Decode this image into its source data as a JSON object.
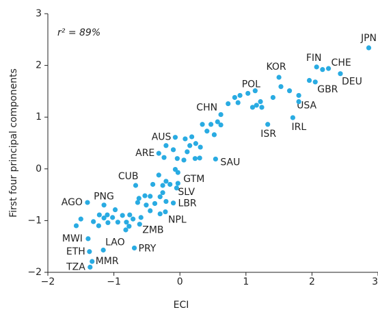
{
  "chart_data": {
    "type": "scatter",
    "xlabel": "ECI",
    "ylabel": "First four principal components",
    "annotation": "r² = 89%",
    "color": "#29abe2",
    "xlim": [
      -2,
      3
    ],
    "xticks": [
      {
        "value": -2,
        "label": "−2"
      },
      {
        "value": -1,
        "label": "−1"
      },
      0,
      1,
      2,
      3
    ],
    "ylim": [
      -2,
      3
    ],
    "yticks": [
      {
        "value": -2,
        "label": "−2"
      },
      {
        "value": -1,
        "label": "−1"
      },
      0,
      1,
      2,
      3
    ],
    "labels": [
      "JPN",
      "FIN",
      "CHE",
      "DEU",
      "GBR",
      "KOR",
      "POL",
      "USA",
      "ISR",
      "IRL",
      "CHN",
      "AUS",
      "ARE",
      "SAU",
      "CUB",
      "GTM",
      "SLV",
      "LBR",
      "NPL",
      "ZMB",
      "AGO",
      "PNG",
      "MWI",
      "ETH",
      "LAO",
      "PRY",
      "MMR",
      "TZA",
      null,
      null,
      null,
      null,
      null,
      null,
      null,
      null,
      null,
      null,
      null,
      null,
      null,
      null,
      null,
      null,
      null,
      null,
      null,
      null,
      null,
      null,
      null,
      null,
      null,
      null,
      null,
      null,
      null,
      null,
      null,
      null,
      null,
      null,
      null,
      null,
      null,
      null,
      null,
      null,
      null,
      null,
      null,
      null,
      null,
      null,
      null,
      null,
      null,
      null,
      null,
      null,
      null,
      null,
      null,
      null,
      null,
      null,
      null,
      null,
      null,
      null,
      null,
      null,
      null,
      null,
      null,
      null,
      null,
      null
    ],
    "x": [
      2.86,
      2.07,
      2.25,
      2.43,
      2.05,
      1.5,
      1.03,
      1.8,
      1.33,
      1.71,
      0.62,
      -0.07,
      -0.32,
      0.54,
      -0.67,
      -0.03,
      -0.05,
      -0.1,
      -0.22,
      -0.61,
      -1.4,
      -1.15,
      -1.39,
      -1.37,
      -1.16,
      -0.69,
      -1.33,
      -1.36,
      2.16,
      1.96,
      1.66,
      1.53,
      1.41,
      1.22,
      1.16,
      1.1,
      1.24,
      0.91,
      0.83,
      0.88,
      0.73,
      1.14,
      1.8,
      0.62,
      0.47,
      0.34,
      0.57,
      0.41,
      0.52,
      0.18,
      0.08,
      0.24,
      0.15,
      0.31,
      0.11,
      0.23,
      0.3,
      0.06,
      -0.1,
      -0.21,
      -0.04,
      -0.24,
      -0.07,
      -0.03,
      -0.32,
      -0.21,
      -0.26,
      -0.41,
      -0.15,
      -0.53,
      -0.62,
      -0.45,
      -0.3,
      -0.26,
      -0.38,
      -0.51,
      -0.21,
      -0.64,
      -0.45,
      -0.3,
      -0.71,
      -0.59,
      -0.76,
      -0.81,
      -0.94,
      -0.87,
      -1.02,
      -1.15,
      -1.22,
      -1.31,
      -0.98,
      -1.09,
      -1.1,
      -1.23,
      -1.5,
      -1.57,
      -0.82,
      -0.77
    ],
    "values": [
      2.34,
      1.97,
      1.94,
      1.84,
      1.68,
      1.77,
      1.46,
      1.42,
      0.86,
      0.99,
      1.05,
      0.61,
      0.3,
      0.19,
      -0.32,
      -0.28,
      -0.37,
      -0.66,
      -0.83,
      -1.07,
      -0.65,
      -0.7,
      -1.35,
      -1.6,
      -1.57,
      -1.53,
      -1.79,
      -1.9,
      1.92,
      1.71,
      1.51,
      1.59,
      1.38,
      1.3,
      1.23,
      1.19,
      1.19,
      1.42,
      1.38,
      1.28,
      1.26,
      1.51,
      1.3,
      0.85,
      0.86,
      0.86,
      0.91,
      0.73,
      0.66,
      0.62,
      0.58,
      0.49,
      0.45,
      0.42,
      0.33,
      0.2,
      0.21,
      0.17,
      0.37,
      0.45,
      0.2,
      0.22,
      -0.01,
      -0.07,
      -0.12,
      -0.24,
      -0.32,
      -0.3,
      -0.3,
      -0.52,
      -0.57,
      -0.53,
      -0.54,
      -0.46,
      -0.67,
      -0.7,
      -0.63,
      -0.65,
      -0.81,
      -0.87,
      -0.97,
      -0.94,
      -0.89,
      -1.03,
      -1.03,
      -0.9,
      -0.94,
      -0.95,
      -0.89,
      -1.02,
      -0.79,
      -1.04,
      -0.89,
      -1.1,
      -0.97,
      -1.1,
      -1.18,
      -1.11
    ]
  }
}
